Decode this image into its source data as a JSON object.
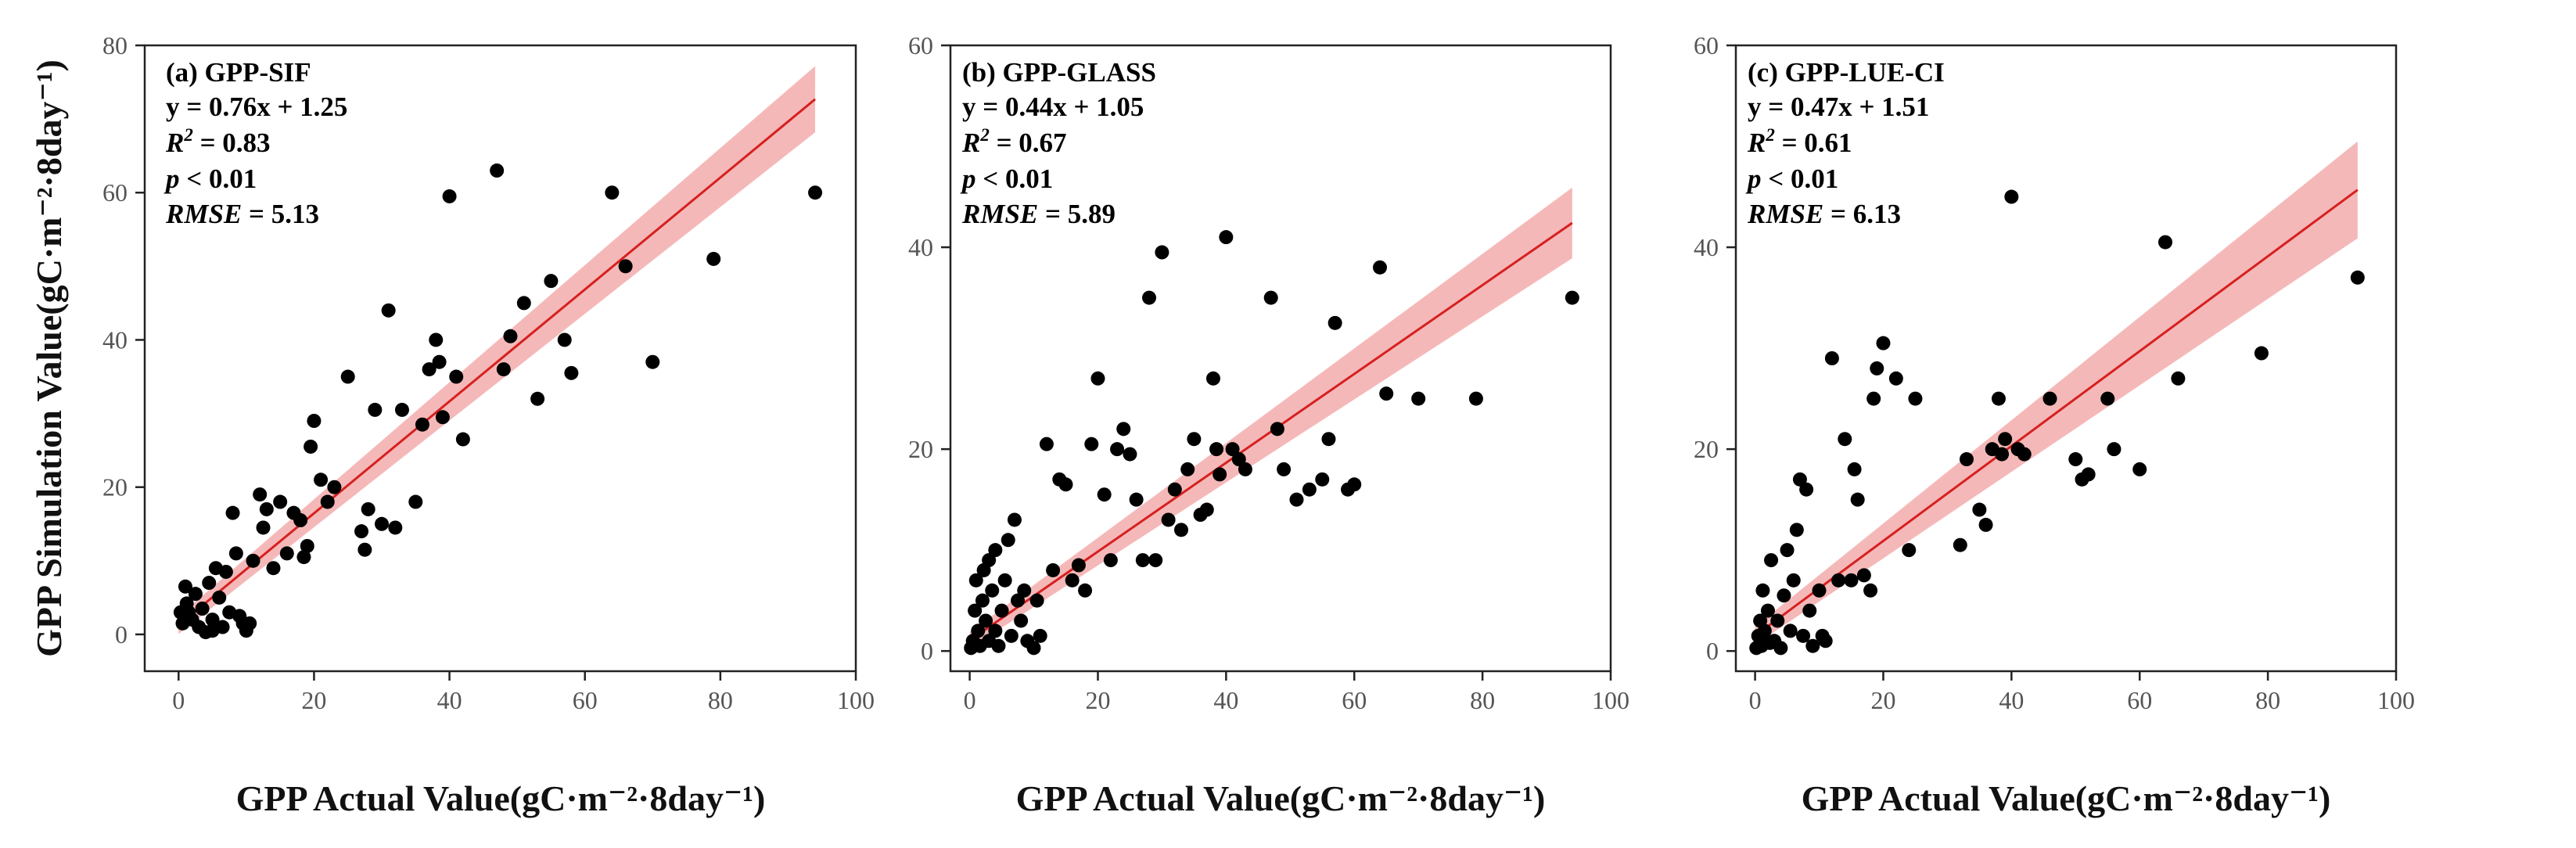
{
  "chart_data": [
    {
      "type": "scatter",
      "panel_label": "(a) GPP-SIF",
      "xlabel": "GPP Actual Value(gC·m⁻²·8day⁻¹)",
      "ylabel": "GPP Simulation Value(gC·m⁻²·8day⁻¹)",
      "xlim": [
        -5,
        100
      ],
      "ylim": [
        -5,
        80
      ],
      "xticks": [
        0,
        20,
        40,
        60,
        80,
        100
      ],
      "yticks": [
        0,
        20,
        40,
        60,
        80
      ],
      "grid": false,
      "annotations": {
        "equation": "y = 0.76x + 1.25",
        "r2_label": "R",
        "r2_sup": "2",
        "r2_value": " = 0.83",
        "p_label": "p",
        "p_value": " < 0.01",
        "rmse_label": "RMSE",
        "rmse_value": " = 5.13"
      },
      "fit": {
        "slope": 0.76,
        "intercept": 1.25,
        "x_range": [
          0,
          94
        ],
        "band_halfwidth": [
          1.2,
          4.5
        ]
      },
      "points": [
        [
          0.3,
          3
        ],
        [
          0.6,
          1.5
        ],
        [
          1,
          6.5
        ],
        [
          1.2,
          4.2
        ],
        [
          1.5,
          3
        ],
        [
          2,
          2
        ],
        [
          2.5,
          5.5
        ],
        [
          3,
          1
        ],
        [
          3.5,
          3.5
        ],
        [
          4,
          0.3
        ],
        [
          4.5,
          7
        ],
        [
          5,
          2
        ],
        [
          5,
          0.5
        ],
        [
          5.5,
          9
        ],
        [
          6,
          5
        ],
        [
          6.5,
          1
        ],
        [
          7,
          8.5
        ],
        [
          7.5,
          3
        ],
        [
          8,
          16.5
        ],
        [
          8.5,
          11
        ],
        [
          9,
          2.5
        ],
        [
          9.5,
          1.5
        ],
        [
          10,
          0.5
        ],
        [
          10.5,
          1.5
        ],
        [
          11,
          10
        ],
        [
          12,
          19
        ],
        [
          12.5,
          14.5
        ],
        [
          13,
          17
        ],
        [
          14,
          9
        ],
        [
          15,
          18
        ],
        [
          16,
          11
        ],
        [
          17,
          16.5
        ],
        [
          18,
          15.5
        ],
        [
          18.5,
          10.5
        ],
        [
          19,
          12
        ],
        [
          19.5,
          25.5
        ],
        [
          20,
          29
        ],
        [
          21,
          21
        ],
        [
          22,
          18
        ],
        [
          23,
          20
        ],
        [
          25,
          35
        ],
        [
          27,
          14
        ],
        [
          27.5,
          11.5
        ],
        [
          28,
          17
        ],
        [
          29,
          30.5
        ],
        [
          30,
          15
        ],
        [
          31,
          44
        ],
        [
          32,
          14.5
        ],
        [
          33,
          30.5
        ],
        [
          35,
          18
        ],
        [
          36,
          28.5
        ],
        [
          37,
          36
        ],
        [
          38,
          40
        ],
        [
          38.5,
          37
        ],
        [
          39,
          29.5
        ],
        [
          40,
          59.5
        ],
        [
          41,
          35
        ],
        [
          42,
          26.5
        ],
        [
          47,
          63
        ],
        [
          48,
          36
        ],
        [
          49,
          40.5
        ],
        [
          51,
          45
        ],
        [
          53,
          32
        ],
        [
          55,
          48
        ],
        [
          57,
          40
        ],
        [
          58,
          35.5
        ],
        [
          64,
          60
        ],
        [
          66,
          50
        ],
        [
          70,
          37
        ],
        [
          79,
          51
        ],
        [
          94,
          60
        ]
      ],
      "series_name": "GPP-SIF"
    },
    {
      "type": "scatter",
      "panel_label": "(b) GPP-GLASS",
      "xlabel": "GPP Actual Value(gC·m⁻²·8day⁻¹)",
      "ylabel": "",
      "xlim": [
        -3,
        100
      ],
      "ylim": [
        -2,
        60
      ],
      "xticks": [
        0,
        20,
        40,
        60,
        80,
        100
      ],
      "yticks": [
        0,
        20,
        40,
        60
      ],
      "grid": false,
      "annotations": {
        "equation": "y = 0.44x + 1.05",
        "r2_label": "R",
        "r2_sup": "2",
        "r2_value": " = 0.67",
        "p_label": "p",
        "p_value": " < 0.01",
        "rmse_label": "RMSE",
        "rmse_value": " = 5.89"
      },
      "fit": {
        "slope": 0.44,
        "intercept": 1.05,
        "x_range": [
          0,
          94
        ],
        "band_halfwidth": [
          0.8,
          3.5
        ]
      },
      "points": [
        [
          0.2,
          0.3
        ],
        [
          0.5,
          1
        ],
        [
          0.8,
          4
        ],
        [
          1,
          7
        ],
        [
          1.3,
          2
        ],
        [
          1.6,
          0.5
        ],
        [
          2,
          5
        ],
        [
          2.2,
          8
        ],
        [
          2.5,
          3
        ],
        [
          3,
          1
        ],
        [
          3,
          9
        ],
        [
          3.5,
          6
        ],
        [
          4,
          2
        ],
        [
          4,
          10
        ],
        [
          4.5,
          0.5
        ],
        [
          5,
          4
        ],
        [
          5.5,
          7
        ],
        [
          6,
          11
        ],
        [
          6.5,
          1.5
        ],
        [
          7,
          13
        ],
        [
          7.5,
          5
        ],
        [
          8,
          3
        ],
        [
          8.5,
          6
        ],
        [
          9,
          1
        ],
        [
          10,
          0.3
        ],
        [
          10.5,
          5
        ],
        [
          11,
          1.5
        ],
        [
          12,
          20.5
        ],
        [
          13,
          8
        ],
        [
          14,
          17
        ],
        [
          15,
          16.5
        ],
        [
          16,
          7
        ],
        [
          17,
          8.5
        ],
        [
          18,
          6
        ],
        [
          19,
          20.5
        ],
        [
          20,
          27
        ],
        [
          21,
          15.5
        ],
        [
          22,
          9
        ],
        [
          23,
          20
        ],
        [
          24,
          22
        ],
        [
          25,
          19.5
        ],
        [
          26,
          15
        ],
        [
          27,
          9
        ],
        [
          28,
          35
        ],
        [
          29,
          9
        ],
        [
          30,
          39.5
        ],
        [
          31,
          13
        ],
        [
          32,
          16
        ],
        [
          33,
          12
        ],
        [
          34,
          18
        ],
        [
          35,
          21
        ],
        [
          36,
          13.5
        ],
        [
          37,
          14
        ],
        [
          38,
          27
        ],
        [
          38.5,
          20
        ],
        [
          39,
          17.5
        ],
        [
          40,
          41
        ],
        [
          41,
          20
        ],
        [
          42,
          19
        ],
        [
          43,
          18
        ],
        [
          47,
          35
        ],
        [
          48,
          22
        ],
        [
          49,
          18
        ],
        [
          51,
          15
        ],
        [
          53,
          16
        ],
        [
          55,
          17
        ],
        [
          56,
          21
        ],
        [
          57,
          32.5
        ],
        [
          59,
          16
        ],
        [
          60,
          16.5
        ],
        [
          64,
          38
        ],
        [
          65,
          25.5
        ],
        [
          70,
          25
        ],
        [
          79,
          25
        ],
        [
          94,
          35
        ]
      ],
      "series_name": "GPP-GLASS"
    },
    {
      "type": "scatter",
      "panel_label": "(c) GPP-LUE-CI",
      "xlabel": "GPP Actual Value(gC·m⁻²·8day⁻¹)",
      "ylabel": "",
      "xlim": [
        -3,
        100
      ],
      "ylim": [
        -2,
        60
      ],
      "xticks": [
        0,
        20,
        40,
        60,
        80,
        100
      ],
      "yticks": [
        0,
        20,
        40,
        60
      ],
      "grid": false,
      "annotations": {
        "equation": "y = 0.47x + 1.51",
        "r2_label": "R",
        "r2_sup": "2",
        "r2_value": " = 0.61",
        "p_label": "p",
        "p_value": " < 0.01",
        "rmse_label": "RMSE",
        "rmse_value": " = 6.13"
      },
      "fit": {
        "slope": 0.47,
        "intercept": 1.51,
        "x_range": [
          0,
          94
        ],
        "band_halfwidth": [
          0.9,
          4.8
        ]
      },
      "points": [
        [
          0.2,
          0.3
        ],
        [
          0.5,
          1.5
        ],
        [
          0.8,
          3
        ],
        [
          1,
          0.5
        ],
        [
          1.2,
          6
        ],
        [
          1.5,
          2
        ],
        [
          2,
          4
        ],
        [
          2.3,
          0.8
        ],
        [
          2.5,
          9
        ],
        [
          3,
          1
        ],
        [
          3.5,
          3
        ],
        [
          4,
          0.3
        ],
        [
          4.5,
          5.5
        ],
        [
          5,
          10
        ],
        [
          5.5,
          2
        ],
        [
          6,
          7
        ],
        [
          6.5,
          12
        ],
        [
          7,
          17
        ],
        [
          7.5,
          1.5
        ],
        [
          8,
          16
        ],
        [
          8.5,
          4
        ],
        [
          9,
          0.5
        ],
        [
          10,
          6
        ],
        [
          10.5,
          1.5
        ],
        [
          11,
          1
        ],
        [
          12,
          29
        ],
        [
          13,
          7
        ],
        [
          14,
          21
        ],
        [
          15,
          7
        ],
        [
          15.5,
          18
        ],
        [
          16,
          15
        ],
        [
          17,
          7.5
        ],
        [
          18,
          6
        ],
        [
          18.5,
          25
        ],
        [
          19,
          28
        ],
        [
          20,
          30.5
        ],
        [
          22,
          27
        ],
        [
          25,
          25
        ],
        [
          24,
          10
        ],
        [
          32,
          10.5
        ],
        [
          33,
          19
        ],
        [
          35,
          14
        ],
        [
          36,
          12.5
        ],
        [
          37,
          20
        ],
        [
          38,
          25
        ],
        [
          38.5,
          19.5
        ],
        [
          39,
          21
        ],
        [
          40,
          45
        ],
        [
          41,
          20
        ],
        [
          42,
          19.5
        ],
        [
          46,
          25
        ],
        [
          50,
          19
        ],
        [
          51,
          17
        ],
        [
          52,
          17.5
        ],
        [
          55,
          25
        ],
        [
          56,
          20
        ],
        [
          60,
          18
        ],
        [
          64,
          40.5
        ],
        [
          66,
          27
        ],
        [
          79,
          29.5
        ],
        [
          94,
          37
        ]
      ],
      "series_name": "GPP-LUE-CI"
    }
  ]
}
